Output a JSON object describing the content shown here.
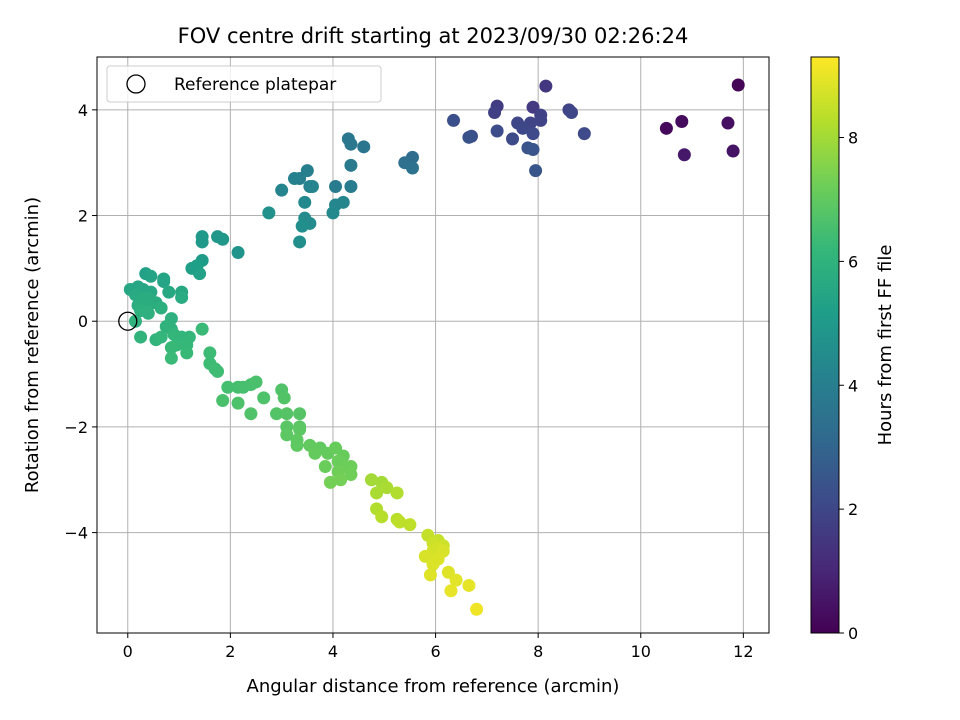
{
  "chart_data": {
    "type": "scatter",
    "title": "FOV centre drift starting at 2023/09/30 02:26:24",
    "xlabel": "Angular distance from reference (arcmin)",
    "ylabel": "Rotation from reference (arcmin)",
    "xlim": [
      -0.6,
      12.5
    ],
    "ylim": [
      -5.9,
      5.0
    ],
    "x_ticks": [
      0,
      2,
      4,
      6,
      8,
      10,
      12
    ],
    "y_ticks": [
      -4,
      -2,
      0,
      2,
      4
    ],
    "x_tick_labels": [
      "0",
      "2",
      "4",
      "6",
      "8",
      "10",
      "12"
    ],
    "y_tick_labels": [
      "−4",
      "−2",
      "0",
      "2",
      "4"
    ],
    "grid": true,
    "legend": {
      "placement": "top-left",
      "entries": [
        "Reference platepar"
      ]
    },
    "reference_point": {
      "x": 0,
      "y": 0,
      "label": "Reference platepar",
      "marker": "open-circle"
    },
    "colorbar": {
      "label": "Hours from first FF file",
      "colormap": "viridis",
      "range": [
        0,
        9.3
      ],
      "ticks": [
        0,
        2,
        4,
        6,
        8
      ],
      "tick_labels": [
        "0",
        "2",
        "4",
        "6",
        "8"
      ]
    },
    "colormap_stops": [
      "#440154",
      "#482878",
      "#3e4989",
      "#31688e",
      "#26828e",
      "#1f9e89",
      "#35b779",
      "#6ece58",
      "#b5de2b",
      "#fde725"
    ],
    "series": [
      {
        "points": [
          [
            11.9,
            4.47,
            0.1
          ],
          [
            10.5,
            3.65,
            0.2
          ],
          [
            10.8,
            3.78,
            0.3
          ],
          [
            11.7,
            3.75,
            0.4
          ],
          [
            11.8,
            3.22,
            0.5
          ],
          [
            10.85,
            3.15,
            0.6
          ],
          [
            8.15,
            4.45,
            1.5
          ],
          [
            7.9,
            4.05,
            1.6
          ],
          [
            7.2,
            4.07,
            1.7
          ],
          [
            7.15,
            3.95,
            1.8
          ],
          [
            8.05,
            3.9,
            1.85
          ],
          [
            8.05,
            3.8,
            1.9
          ],
          [
            7.85,
            3.75,
            1.95
          ],
          [
            7.6,
            3.75,
            2.0
          ],
          [
            7.7,
            3.65,
            2.05
          ],
          [
            7.9,
            3.55,
            2.1
          ],
          [
            7.5,
            3.45,
            2.15
          ],
          [
            7.2,
            3.6,
            2.2
          ],
          [
            6.7,
            3.5,
            2.25
          ],
          [
            6.35,
            3.8,
            2.3
          ],
          [
            6.65,
            3.48,
            2.35
          ],
          [
            7.8,
            3.28,
            2.4
          ],
          [
            7.9,
            3.25,
            2.45
          ],
          [
            7.95,
            2.85,
            2.5
          ],
          [
            8.6,
            4.0,
            1.9
          ],
          [
            8.65,
            3.95,
            2.0
          ],
          [
            8.9,
            3.55,
            2.1
          ],
          [
            5.55,
            3.1,
            3.3
          ],
          [
            5.4,
            3.0,
            3.4
          ],
          [
            5.55,
            2.9,
            3.5
          ],
          [
            4.6,
            3.3,
            3.6
          ],
          [
            4.3,
            3.45,
            3.7
          ],
          [
            4.35,
            3.35,
            3.7
          ],
          [
            4.35,
            2.95,
            3.8
          ],
          [
            4.35,
            2.55,
            3.9
          ],
          [
            4.05,
            2.55,
            3.9
          ],
          [
            3.5,
            2.85,
            4.0
          ],
          [
            3.35,
            2.7,
            4.0
          ],
          [
            3.25,
            2.7,
            4.1
          ],
          [
            3.55,
            2.55,
            4.1
          ],
          [
            3.6,
            2.55,
            4.2
          ],
          [
            3.0,
            2.48,
            4.2
          ],
          [
            4.2,
            2.25,
            4.3
          ],
          [
            4.05,
            2.2,
            4.3
          ],
          [
            4.0,
            2.05,
            4.4
          ],
          [
            3.45,
            2.25,
            4.4
          ],
          [
            3.45,
            1.95,
            4.5
          ],
          [
            3.55,
            1.85,
            4.5
          ],
          [
            3.4,
            1.8,
            4.6
          ],
          [
            3.35,
            1.5,
            4.6
          ],
          [
            2.75,
            2.05,
            4.7
          ],
          [
            2.15,
            1.3,
            4.8
          ],
          [
            1.85,
            1.55,
            4.9
          ],
          [
            1.75,
            1.6,
            4.9
          ],
          [
            1.45,
            1.6,
            5.0
          ],
          [
            1.45,
            1.5,
            5.0
          ],
          [
            1.45,
            1.15,
            5.1
          ],
          [
            1.35,
            1.05,
            5.2
          ],
          [
            1.25,
            1.0,
            5.2
          ],
          [
            1.4,
            0.9,
            5.3
          ],
          [
            0.35,
            0.9,
            5.3
          ],
          [
            0.45,
            0.85,
            5.4
          ],
          [
            0.7,
            0.8,
            5.4
          ],
          [
            0.7,
            0.75,
            5.45
          ],
          [
            0.2,
            0.65,
            5.5
          ],
          [
            0.05,
            0.6,
            5.5
          ],
          [
            0.3,
            0.6,
            5.55
          ],
          [
            0.45,
            0.55,
            5.55
          ],
          [
            0.8,
            0.55,
            5.6
          ],
          [
            1.05,
            0.55,
            5.6
          ],
          [
            0.15,
            0.5,
            5.65
          ],
          [
            0.25,
            0.45,
            5.65
          ],
          [
            0.4,
            0.45,
            5.7
          ],
          [
            1.05,
            0.45,
            5.7
          ],
          [
            0.3,
            0.4,
            5.75
          ],
          [
            0.55,
            0.35,
            5.75
          ],
          [
            0.2,
            0.3,
            5.8
          ],
          [
            0.4,
            0.3,
            5.8
          ],
          [
            0.65,
            0.25,
            5.85
          ],
          [
            0.25,
            0.2,
            5.85
          ],
          [
            0.4,
            0.15,
            5.9
          ],
          [
            0.85,
            0.05,
            5.9
          ],
          [
            0.15,
            0.0,
            5.95
          ],
          [
            0.75,
            -0.1,
            6.0
          ],
          [
            0.85,
            -0.15,
            6.0
          ],
          [
            0.25,
            -0.3,
            6.05
          ],
          [
            0.55,
            -0.35,
            6.05
          ],
          [
            0.65,
            -0.3,
            6.1
          ],
          [
            1.05,
            -0.3,
            6.1
          ],
          [
            0.9,
            -0.25,
            6.15
          ],
          [
            1.2,
            -0.3,
            6.15
          ],
          [
            0.95,
            -0.45,
            6.2
          ],
          [
            1.15,
            -0.45,
            6.2
          ],
          [
            0.85,
            -0.5,
            6.25
          ],
          [
            1.15,
            -0.6,
            6.25
          ],
          [
            0.85,
            -0.7,
            6.3
          ],
          [
            1.45,
            -0.15,
            6.3
          ],
          [
            1.6,
            -0.6,
            6.35
          ],
          [
            1.6,
            -0.8,
            6.35
          ],
          [
            1.75,
            -0.95,
            6.4
          ],
          [
            1.7,
            -0.9,
            6.4
          ],
          [
            1.95,
            -1.25,
            6.5
          ],
          [
            2.15,
            -1.25,
            6.5
          ],
          [
            2.25,
            -1.25,
            6.55
          ],
          [
            2.4,
            -1.2,
            6.55
          ],
          [
            2.5,
            -1.15,
            6.6
          ],
          [
            1.85,
            -1.5,
            6.6
          ],
          [
            2.15,
            -1.55,
            6.65
          ],
          [
            2.65,
            -1.45,
            6.65
          ],
          [
            2.4,
            -1.75,
            6.7
          ],
          [
            3.0,
            -1.3,
            6.7
          ],
          [
            3.05,
            -1.45,
            6.75
          ],
          [
            2.9,
            -1.75,
            6.75
          ],
          [
            3.1,
            -1.75,
            6.8
          ],
          [
            3.35,
            -1.75,
            6.8
          ],
          [
            3.1,
            -2.0,
            6.85
          ],
          [
            3.35,
            -2.0,
            6.85
          ],
          [
            3.35,
            -2.05,
            6.9
          ],
          [
            3.1,
            -2.15,
            6.9
          ],
          [
            3.3,
            -2.25,
            6.95
          ],
          [
            3.3,
            -2.35,
            6.95
          ],
          [
            3.55,
            -2.35,
            7.0
          ],
          [
            3.75,
            -2.4,
            7.0
          ],
          [
            3.65,
            -2.5,
            7.05
          ],
          [
            3.9,
            -2.5,
            7.05
          ],
          [
            4.05,
            -2.4,
            7.1
          ],
          [
            4.2,
            -2.55,
            7.1
          ],
          [
            4.1,
            -2.65,
            7.15
          ],
          [
            3.85,
            -2.75,
            7.15
          ],
          [
            4.25,
            -2.75,
            7.2
          ],
          [
            4.35,
            -2.75,
            7.2
          ],
          [
            4.1,
            -2.85,
            7.25
          ],
          [
            4.35,
            -2.9,
            7.25
          ],
          [
            4.15,
            -3.0,
            7.3
          ],
          [
            3.95,
            -3.05,
            7.3
          ],
          [
            4.75,
            -3.0,
            8.0
          ],
          [
            4.95,
            -3.05,
            8.0
          ],
          [
            5.05,
            -3.15,
            8.1
          ],
          [
            4.85,
            -3.25,
            8.1
          ],
          [
            5.25,
            -3.25,
            8.2
          ],
          [
            4.85,
            -3.55,
            8.2
          ],
          [
            4.95,
            -3.7,
            8.3
          ],
          [
            5.25,
            -3.75,
            8.3
          ],
          [
            5.3,
            -3.8,
            8.4
          ],
          [
            5.5,
            -3.85,
            8.4
          ],
          [
            5.85,
            -4.05,
            8.5
          ],
          [
            6.05,
            -4.15,
            8.5
          ],
          [
            5.95,
            -4.2,
            8.6
          ],
          [
            6.15,
            -4.25,
            8.6
          ],
          [
            6.05,
            -4.3,
            8.7
          ],
          [
            5.95,
            -4.35,
            8.7
          ],
          [
            5.8,
            -4.45,
            8.75
          ],
          [
            6.15,
            -4.35,
            8.75
          ],
          [
            6.05,
            -4.5,
            8.8
          ],
          [
            5.95,
            -4.6,
            8.8
          ],
          [
            6.25,
            -4.75,
            8.85
          ],
          [
            5.9,
            -4.8,
            8.85
          ],
          [
            6.4,
            -4.9,
            8.9
          ],
          [
            6.65,
            -5.0,
            8.95
          ],
          [
            6.3,
            -5.1,
            9.0
          ],
          [
            6.8,
            -5.45,
            9.1
          ]
        ]
      }
    ]
  }
}
